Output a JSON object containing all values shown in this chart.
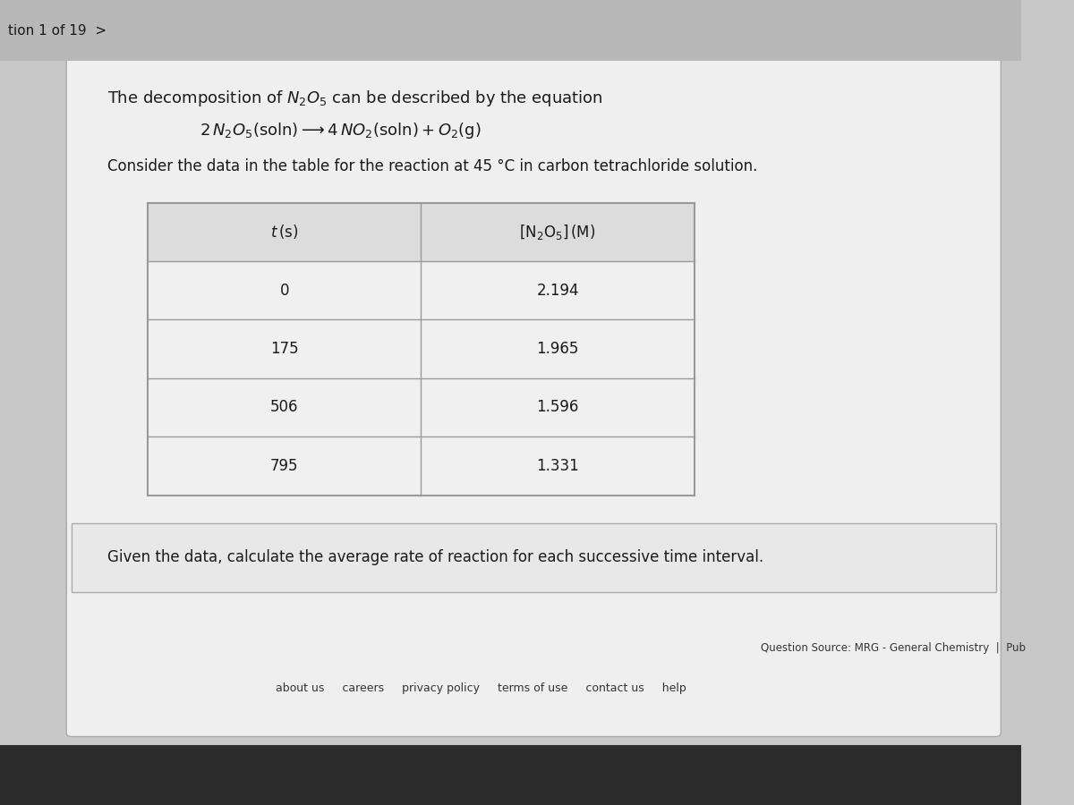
{
  "bg_color": "#c8c8c8",
  "header_bar_color": "#b8b8b8",
  "content_bg": "#e8e8e8",
  "header_text": "tion 1 of 19  >",
  "consider_text": "Consider the data in the table for the reaction at 45 °C in carbon tetrachloride solution.",
  "table_data": [
    [
      0,
      "2.194"
    ],
    [
      175,
      "1.965"
    ],
    [
      506,
      "1.596"
    ],
    [
      795,
      "1.331"
    ]
  ],
  "question_text": "Given the data, calculate the average rate of reaction for each successive time interval.",
  "footer_source": "Question Source: MRG - General Chemistry  |  Pub",
  "footer_links": "about us     careers     privacy policy     terms of use     contact us     help",
  "table_bg": "#f0f0f0",
  "table_header_bg": "#dcdcdc",
  "table_border_color": "#999999",
  "text_color": "#1a1a1a",
  "taskbar_color": "#2b2b2b"
}
